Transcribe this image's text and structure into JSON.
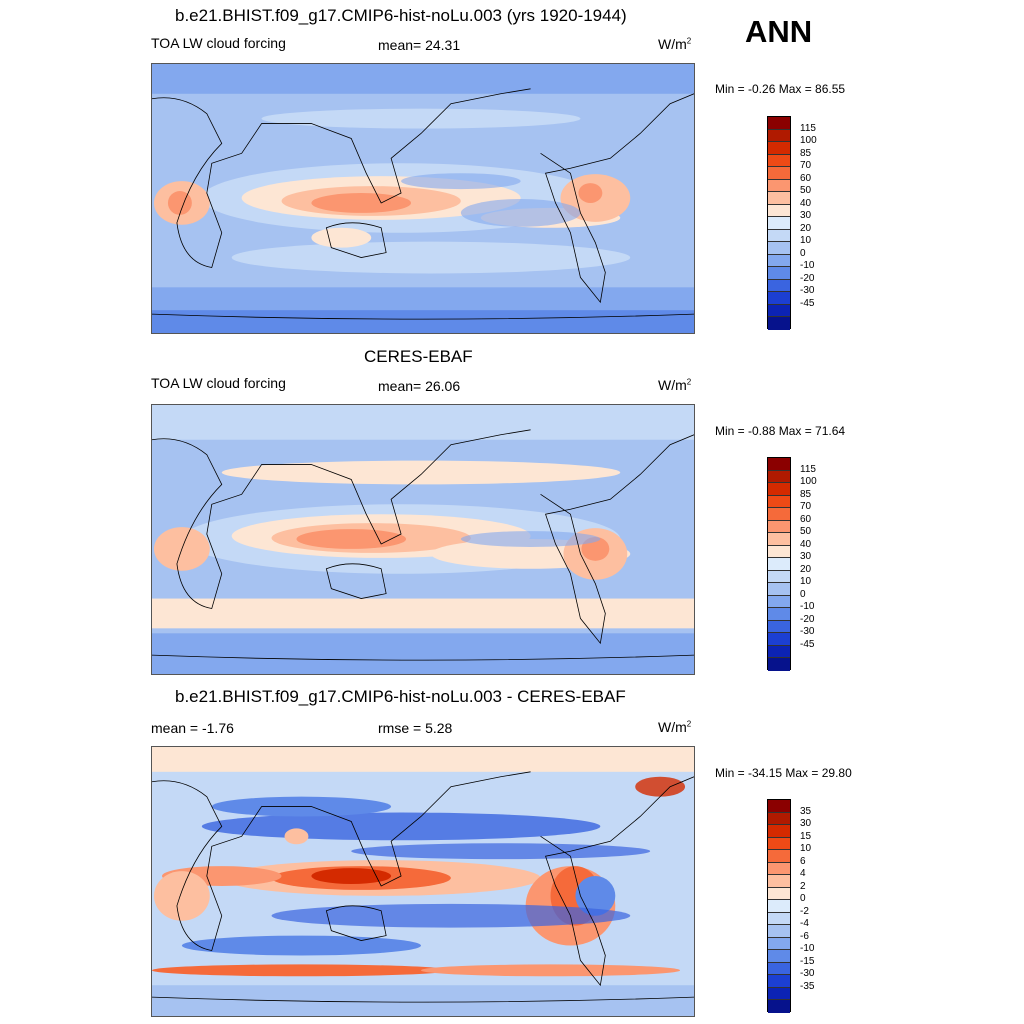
{
  "season": "ANN",
  "unit_label": "W/m",
  "unit_sup": "2",
  "panels": [
    {
      "title": "b.e21.BHIST.f09_g17.CMIP6-hist-noLu.003 (yrs 1920-1944)",
      "left_label": "TOA LW cloud forcing",
      "center_label": "mean=  24.31",
      "minmax": "Min =  -0.26 Max =  86.55"
    },
    {
      "title": "CERES-EBAF",
      "left_label": "TOA LW cloud forcing",
      "center_label": "mean=  26.06",
      "minmax": "Min =  -0.88 Max =  71.64"
    },
    {
      "title": "b.e21.BHIST.f09_g17.CMIP6-hist-noLu.003 - CERES-EBAF",
      "left_label": "mean =  -1.76",
      "center_label": "rmse =   5.28",
      "minmax": "Min = -34.15 Max =  29.80"
    }
  ],
  "colorbars": {
    "field": {
      "labels": [
        "115",
        "100",
        "85",
        "70",
        "60",
        "50",
        "40",
        "30",
        "20",
        "10",
        "0",
        "-10",
        "-20",
        "-30",
        "-45"
      ],
      "colors": [
        "#8b0000",
        "#b01a00",
        "#d42a00",
        "#ee4a16",
        "#f56a3a",
        "#fb9670",
        "#fdbfa0",
        "#fde6d4",
        "#dcebfb",
        "#c4d9f6",
        "#a6c2f1",
        "#83a8ee",
        "#5f8ae8",
        "#3a64e0",
        "#1c3fd2",
        "#0c23b4",
        "#06128c"
      ]
    },
    "difference": {
      "labels": [
        "35",
        "30",
        "15",
        "10",
        "6",
        "4",
        "2",
        "0",
        "-2",
        "-4",
        "-6",
        "-10",
        "-15",
        "-30",
        "-35"
      ],
      "colors": [
        "#8b0000",
        "#b01a00",
        "#d42a00",
        "#ee4a16",
        "#f56a3a",
        "#fb9670",
        "#fdbfa0",
        "#fde6d4",
        "#dcebfb",
        "#c4d9f6",
        "#a6c2f1",
        "#83a8ee",
        "#5f8ae8",
        "#3a64e0",
        "#1c3fd2",
        "#0c23b4",
        "#06128c"
      ]
    }
  }
}
